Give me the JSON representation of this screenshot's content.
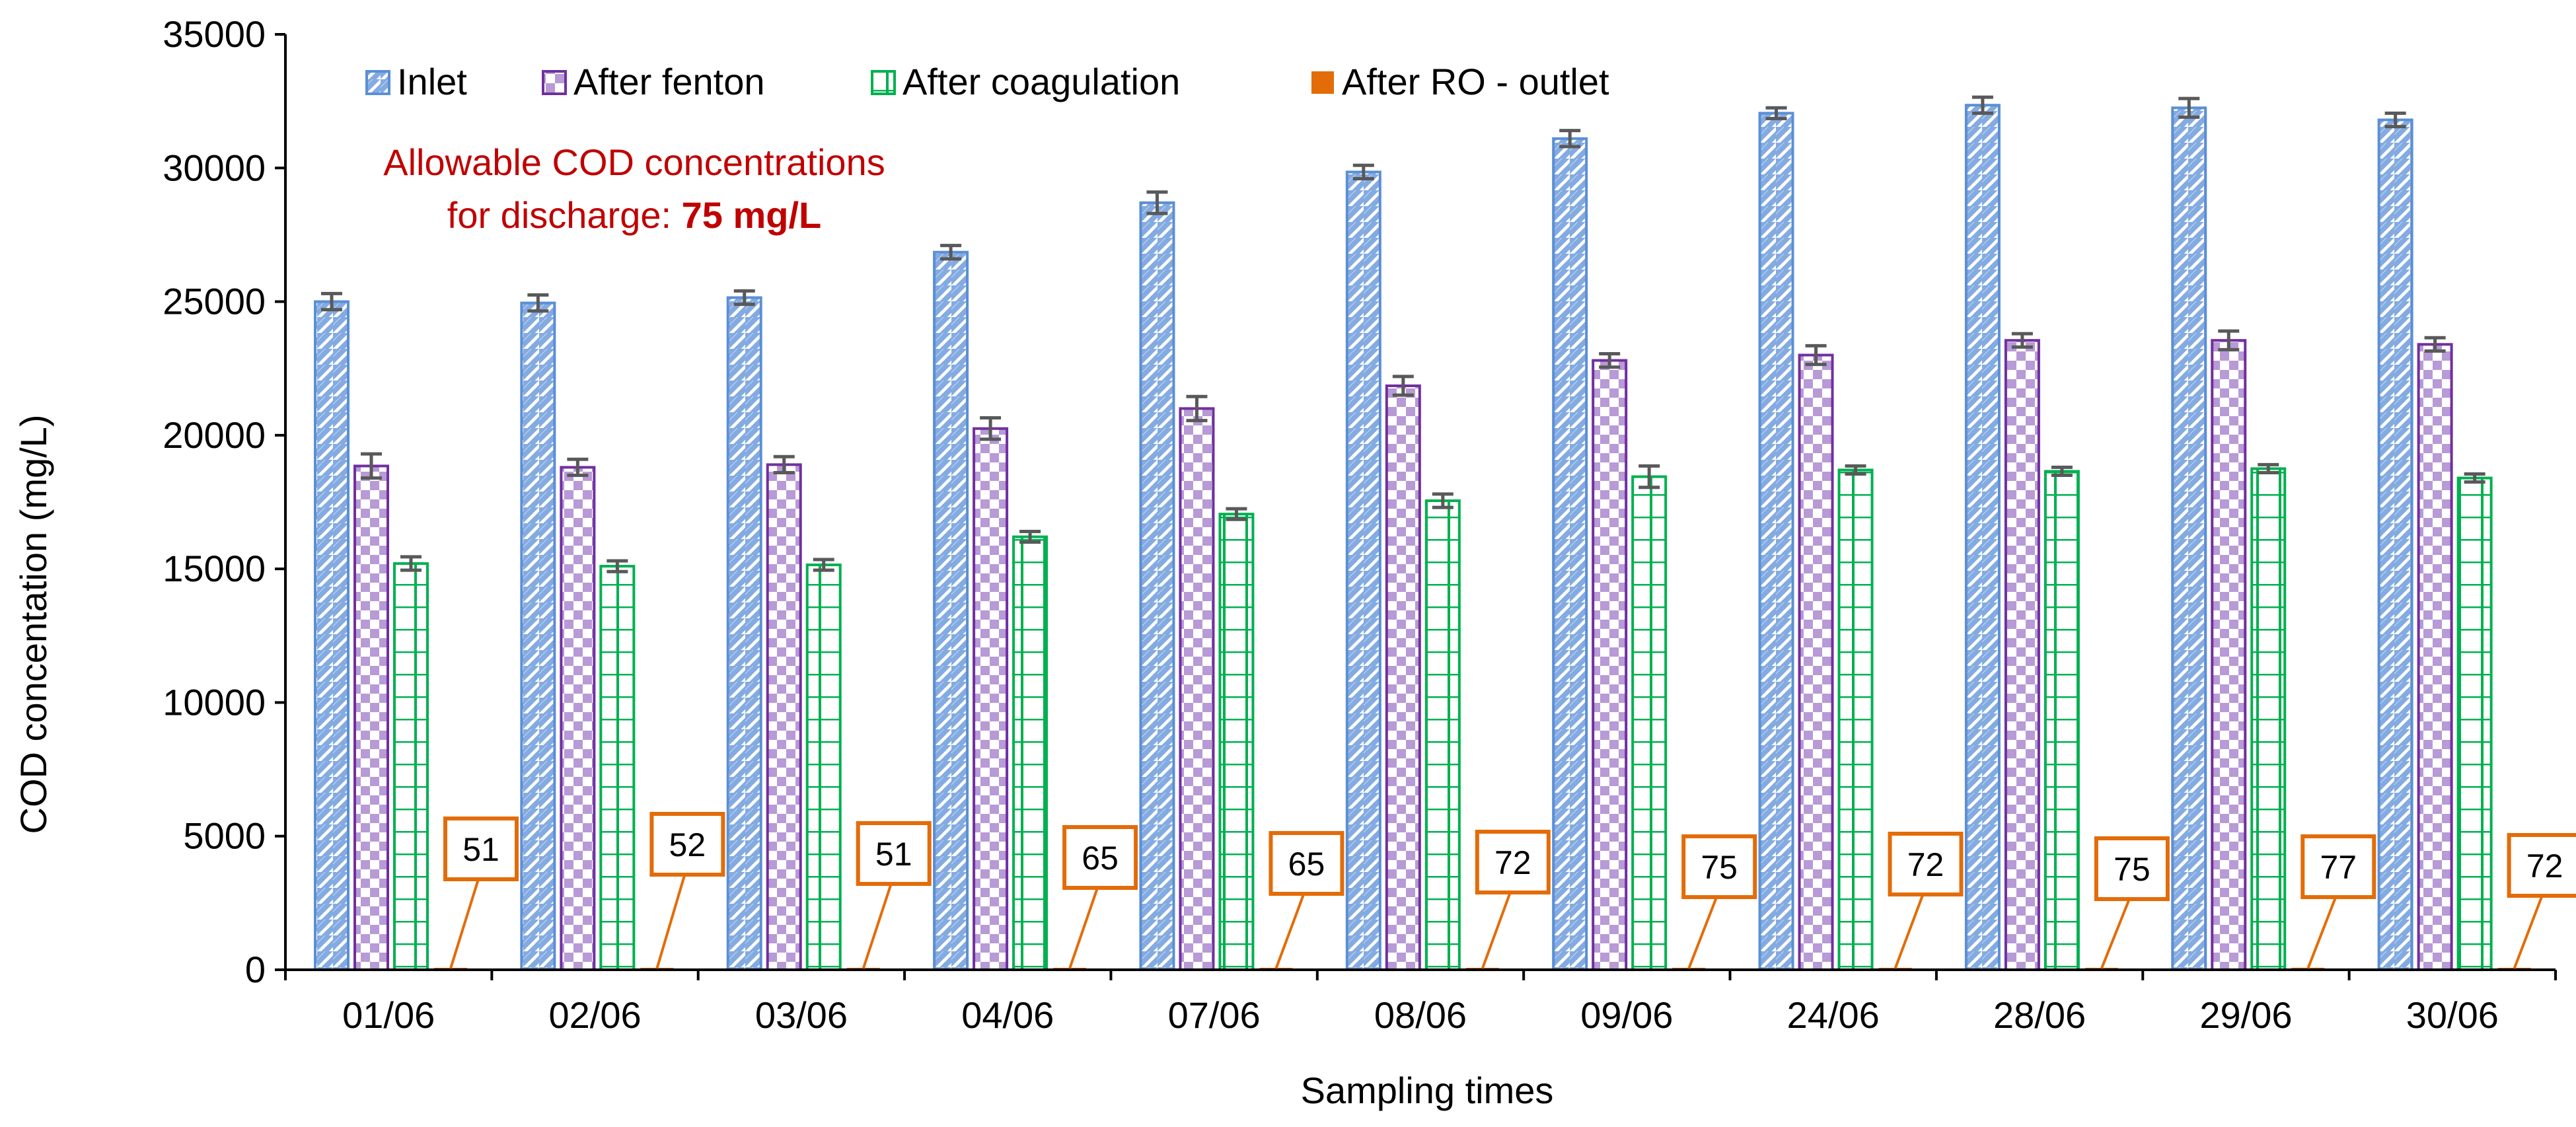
{
  "chart_data": {
    "type": "bar",
    "ylabel": "COD concentation (mg/L)",
    "xlabel": "Sampling times",
    "ylim": [
      0,
      35000
    ],
    "yticks": [
      0,
      5000,
      10000,
      15000,
      20000,
      25000,
      30000,
      35000
    ],
    "categories": [
      "01/06",
      "02/06",
      "03/06",
      "04/06",
      "07/06",
      "08/06",
      "09/06",
      "24/06",
      "28/06",
      "29/06",
      "30/06"
    ],
    "series": [
      {
        "name": "Inlet",
        "color": "#5b8fd6",
        "pattern": "diagonal-stripes",
        "values": [
          25000,
          24950,
          25150,
          26850,
          28700,
          29850,
          31100,
          32050,
          32350,
          32250,
          31800
        ],
        "errors": [
          300,
          300,
          250,
          250,
          400,
          250,
          300,
          200,
          300,
          350,
          250
        ]
      },
      {
        "name": "After fenton",
        "color": "#7030a0",
        "pattern": "checkerboard",
        "values": [
          18850,
          18800,
          18900,
          20250,
          21000,
          21850,
          22800,
          23000,
          23550,
          23550,
          23400
        ],
        "errors": [
          450,
          300,
          300,
          400,
          450,
          350,
          250,
          350,
          250,
          350,
          250
        ]
      },
      {
        "name": "After coagulation",
        "color": "#00b050",
        "pattern": "grid",
        "values": [
          15200,
          15100,
          15150,
          16200,
          17050,
          17550,
          18450,
          18700,
          18650,
          18750,
          18400
        ],
        "errors": [
          250,
          200,
          200,
          200,
          200,
          250,
          400,
          150,
          150,
          150,
          150
        ]
      },
      {
        "name": "After RO - outlet",
        "color": "#e36c09",
        "pattern": "solid",
        "values": [
          51,
          52,
          51,
          65,
          65,
          72,
          75,
          72,
          75,
          77,
          72
        ],
        "data_labels": [
          "51",
          "52",
          "51",
          "65",
          "65",
          "72",
          "75",
          "72",
          "75",
          "77",
          "72"
        ]
      }
    ],
    "annotation": {
      "text": "Allowable COD concentrations",
      "text2_prefix": "for discharge: ",
      "text2_bold": "75 mg/L",
      "color": "#c00000"
    },
    "legend": "top-left, horizontal",
    "grid": false
  }
}
